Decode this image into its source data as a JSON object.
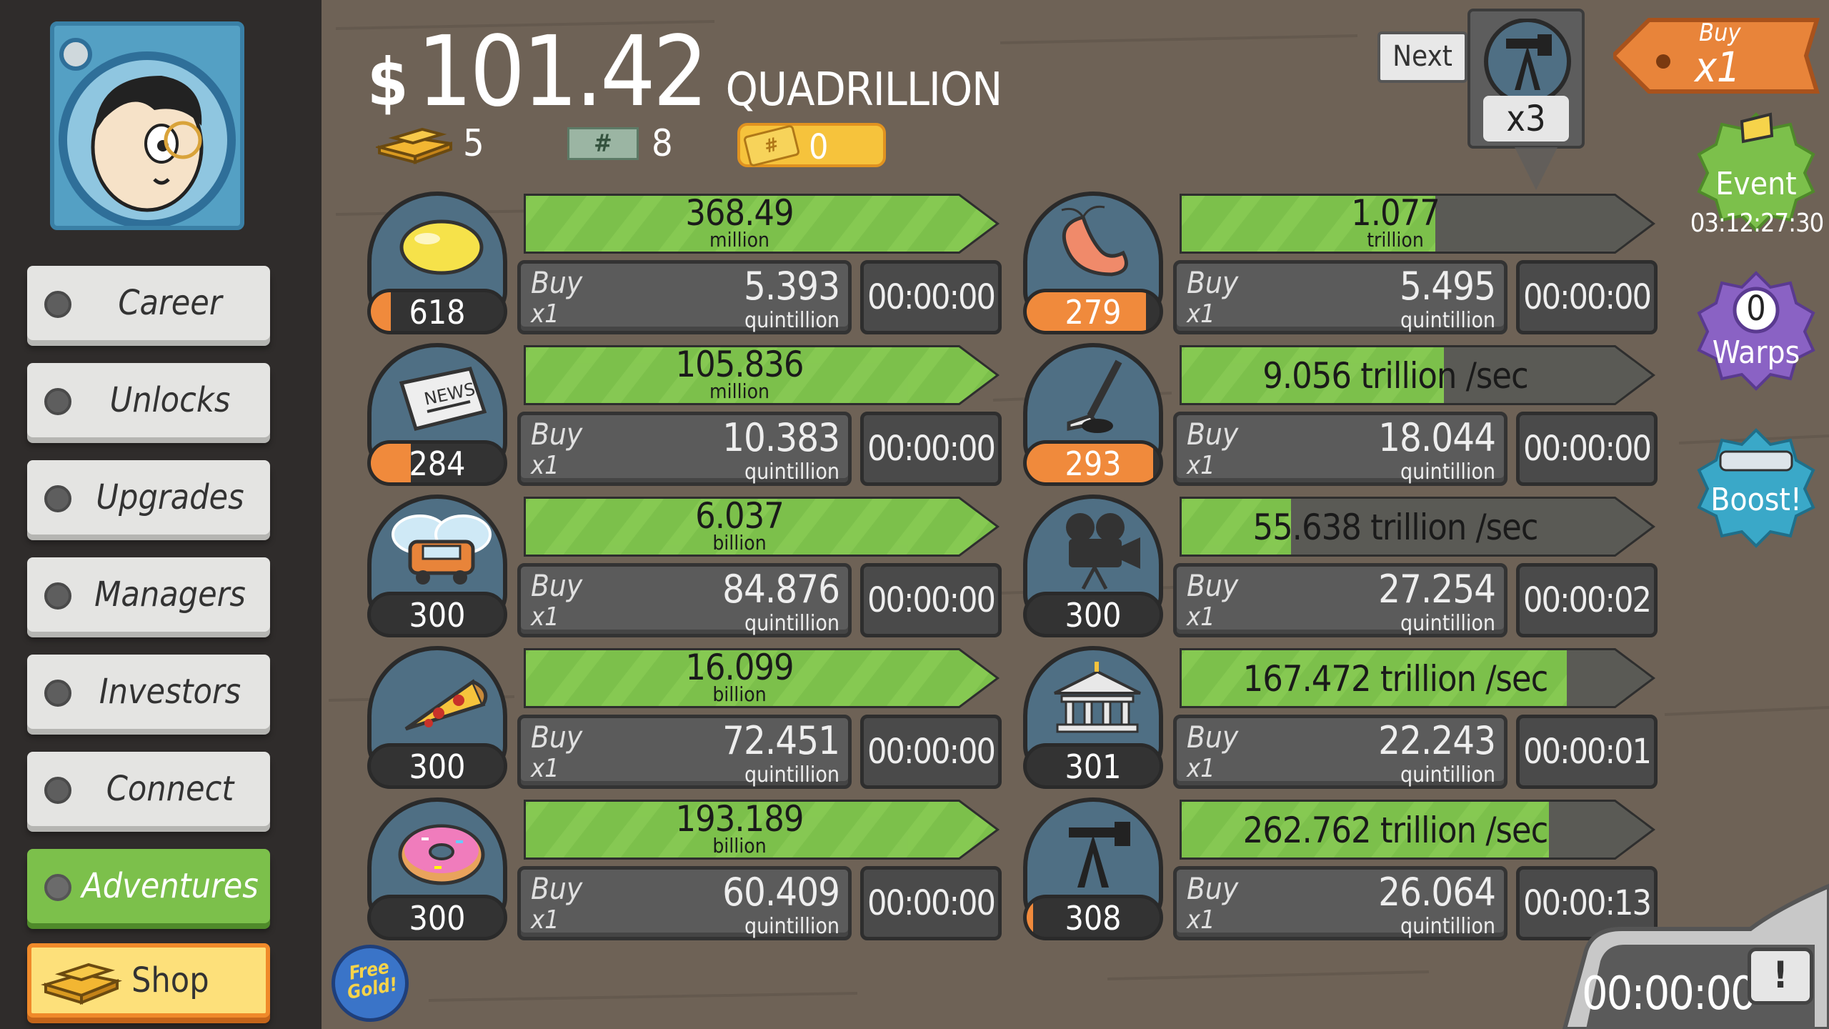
{
  "header": {
    "money_symbol": "$",
    "money_amount": "101.42",
    "money_unit": "QUADRILLION",
    "gold": "5",
    "megabucks": "8",
    "tickets": "0"
  },
  "sidebar": {
    "items": [
      {
        "label": "Career"
      },
      {
        "label": "Unlocks"
      },
      {
        "label": "Upgrades"
      },
      {
        "label": "Managers"
      },
      {
        "label": "Investors"
      },
      {
        "label": "Connect"
      },
      {
        "label": "Adventures"
      },
      {
        "label": "Shop"
      }
    ],
    "free_gold": "Free Gold!"
  },
  "businesses": [
    {
      "icon": "lemon-icon",
      "count": "618",
      "progress": 0.15,
      "rev_progress": 1.0,
      "revenue": "368.49",
      "revenue_unit": "million",
      "buy_label": "Buy",
      "buy_mult": "x1",
      "cost": "5.393",
      "cost_unit": "quintillion",
      "timer": "00:00:00"
    },
    {
      "icon": "newspaper-icon",
      "count": "284",
      "progress": 0.3,
      "rev_progress": 1.0,
      "revenue": "105.836",
      "revenue_unit": "million",
      "buy_label": "Buy",
      "buy_mult": "x1",
      "cost": "10.383",
      "cost_unit": "quintillion",
      "timer": "00:00:00"
    },
    {
      "icon": "car-wash-icon",
      "count": "300",
      "progress": 0.0,
      "rev_progress": 1.0,
      "revenue": "6.037",
      "revenue_unit": "billion",
      "buy_label": "Buy",
      "buy_mult": "x1",
      "cost": "84.876",
      "cost_unit": "quintillion",
      "timer": "00:00:00"
    },
    {
      "icon": "pizza-icon",
      "count": "300",
      "progress": 0.0,
      "rev_progress": 1.0,
      "revenue": "16.099",
      "revenue_unit": "billion",
      "buy_label": "Buy",
      "buy_mult": "x1",
      "cost": "72.451",
      "cost_unit": "quintillion",
      "timer": "00:00:00"
    },
    {
      "icon": "donut-icon",
      "count": "300",
      "progress": 0.0,
      "rev_progress": 1.0,
      "revenue": "193.189",
      "revenue_unit": "billion",
      "buy_label": "Buy",
      "buy_mult": "x1",
      "cost": "60.409",
      "cost_unit": "quintillion",
      "timer": "00:00:00"
    },
    {
      "icon": "shrimp-icon",
      "count": "279",
      "progress": 0.9,
      "rev_progress": 0.58,
      "revenue": "1.077",
      "revenue_unit": "trillion",
      "buy_label": "Buy",
      "buy_mult": "x1",
      "cost": "5.495",
      "cost_unit": "quintillion",
      "timer": "00:00:00"
    },
    {
      "icon": "hockey-icon",
      "count": "293",
      "progress": 0.95,
      "rev_progress": 0.6,
      "revenue": "9.056 trillion /sec",
      "revenue_unit": "",
      "buy_label": "Buy",
      "buy_mult": "x1",
      "cost": "18.044",
      "cost_unit": "quintillion",
      "timer": "00:00:00"
    },
    {
      "icon": "movie-camera-icon",
      "count": "300",
      "progress": 0.0,
      "rev_progress": 0.25,
      "revenue": "55.638 trillion /sec",
      "revenue_unit": "",
      "buy_label": "Buy",
      "buy_mult": "x1",
      "cost": "27.254",
      "cost_unit": "quintillion",
      "timer": "00:00:02"
    },
    {
      "icon": "bank-icon",
      "count": "301",
      "progress": 0.0,
      "rev_progress": 0.88,
      "revenue": "167.472 trillion /sec",
      "revenue_unit": "",
      "buy_label": "Buy",
      "buy_mult": "x1",
      "cost": "22.243",
      "cost_unit": "quintillion",
      "timer": "00:00:01"
    },
    {
      "icon": "oil-rig-icon",
      "count": "308",
      "progress": 0.05,
      "rev_progress": 0.84,
      "revenue": "262.762 trillion /sec",
      "revenue_unit": "",
      "buy_label": "Buy",
      "buy_mult": "x1",
      "cost": "26.064",
      "cost_unit": "quintillion",
      "timer": "00:00:13"
    }
  ],
  "right": {
    "next_label": "Next",
    "next_mult": "x3",
    "buy_toggle_label": "Buy",
    "buy_toggle_mult": "x1",
    "event_label": "Event",
    "event_timer": "03:12:27:30",
    "warps_count": "0",
    "warps_label": "Warps",
    "boost_label": "Boost!",
    "tv_timer": "00:00:00",
    "tv_badge": "!"
  },
  "colors": {
    "background": "#6e6256",
    "sidebar": "#2f2c2b",
    "bar_green": "#7cc04b",
    "bar_dark": "#5a5a55",
    "accent_orange": "#f08a3c"
  }
}
